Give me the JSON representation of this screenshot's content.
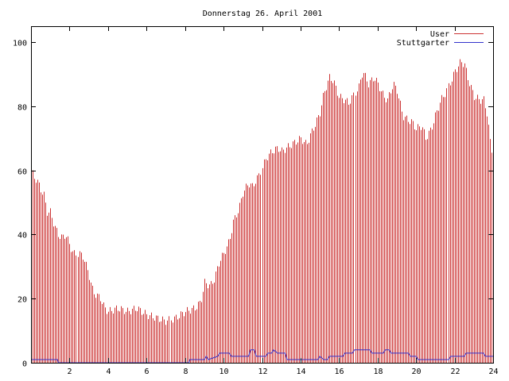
{
  "chart_data": {
    "type": "bar",
    "title": "Donnerstag 26. April 2001",
    "xlabel": "",
    "ylabel": "",
    "xlim": [
      0,
      24
    ],
    "ylim": [
      0,
      105
    ],
    "x_ticks": [
      {
        "value": 2,
        "label": "2"
      },
      {
        "value": 4,
        "label": "4"
      },
      {
        "value": 6,
        "label": "6"
      },
      {
        "value": 8,
        "label": "8"
      },
      {
        "value": 10,
        "label": "10"
      },
      {
        "value": 12,
        "label": "12"
      },
      {
        "value": 14,
        "label": "14"
      },
      {
        "value": 16,
        "label": "16"
      },
      {
        "value": 18,
        "label": "18"
      },
      {
        "value": 20,
        "label": "20"
      },
      {
        "value": 22,
        "label": "22"
      },
      {
        "value": 24,
        "label": "24"
      }
    ],
    "y_ticks": [
      {
        "value": 0,
        "label": "0"
      },
      {
        "value": 20,
        "label": "20"
      },
      {
        "value": 40,
        "label": "40"
      },
      {
        "value": 60,
        "label": "60"
      },
      {
        "value": 80,
        "label": "80"
      },
      {
        "value": 100,
        "label": "100"
      }
    ],
    "grid": false,
    "legend_position": "top-right",
    "sample_interval_minutes": 5,
    "series": [
      {
        "name": "User",
        "style": "impulses",
        "color": "#cc3333",
        "anchors": [
          [
            0.0,
            63
          ],
          [
            0.1,
            58
          ],
          [
            0.3,
            57
          ],
          [
            0.5,
            54
          ],
          [
            0.7,
            52
          ],
          [
            0.8,
            47
          ],
          [
            1.0,
            47
          ],
          [
            1.2,
            43
          ],
          [
            1.4,
            40
          ],
          [
            1.6,
            39
          ],
          [
            1.8,
            40
          ],
          [
            2.0,
            37
          ],
          [
            2.2,
            34
          ],
          [
            2.5,
            34
          ],
          [
            2.7,
            33
          ],
          [
            3.0,
            27
          ],
          [
            3.2,
            22
          ],
          [
            3.4,
            21
          ],
          [
            3.6,
            20
          ],
          [
            3.8,
            17
          ],
          [
            4.0,
            16
          ],
          [
            4.5,
            17
          ],
          [
            5.0,
            16
          ],
          [
            5.5,
            17
          ],
          [
            6.0,
            15
          ],
          [
            6.5,
            14
          ],
          [
            7.0,
            13
          ],
          [
            7.5,
            14
          ],
          [
            8.0,
            16
          ],
          [
            8.5,
            17
          ],
          [
            8.8,
            19
          ],
          [
            9.0,
            25
          ],
          [
            9.3,
            24
          ],
          [
            9.5,
            26
          ],
          [
            9.8,
            32
          ],
          [
            10.0,
            34
          ],
          [
            10.3,
            38
          ],
          [
            10.5,
            44
          ],
          [
            10.8,
            48
          ],
          [
            11.0,
            53
          ],
          [
            11.3,
            56
          ],
          [
            11.5,
            55
          ],
          [
            11.8,
            58
          ],
          [
            12.0,
            61
          ],
          [
            12.2,
            64
          ],
          [
            12.5,
            66
          ],
          [
            12.8,
            67
          ],
          [
            13.0,
            66
          ],
          [
            13.5,
            68
          ],
          [
            14.0,
            70
          ],
          [
            14.3,
            68
          ],
          [
            14.5,
            71
          ],
          [
            14.8,
            75
          ],
          [
            15.0,
            78
          ],
          [
            15.2,
            84
          ],
          [
            15.5,
            89
          ],
          [
            15.7,
            88
          ],
          [
            16.0,
            83
          ],
          [
            16.3,
            82
          ],
          [
            16.5,
            81
          ],
          [
            16.8,
            84
          ],
          [
            17.0,
            86
          ],
          [
            17.2,
            91
          ],
          [
            17.5,
            87
          ],
          [
            17.8,
            89
          ],
          [
            18.0,
            87
          ],
          [
            18.3,
            83
          ],
          [
            18.5,
            82
          ],
          [
            18.8,
            87
          ],
          [
            19.0,
            85
          ],
          [
            19.3,
            77
          ],
          [
            19.5,
            76
          ],
          [
            19.8,
            75
          ],
          [
            20.0,
            73
          ],
          [
            20.3,
            74
          ],
          [
            20.5,
            70
          ],
          [
            20.8,
            73
          ],
          [
            21.0,
            77
          ],
          [
            21.3,
            82
          ],
          [
            21.5,
            84
          ],
          [
            21.8,
            88
          ],
          [
            22.0,
            91
          ],
          [
            22.3,
            94
          ],
          [
            22.5,
            93
          ],
          [
            22.7,
            88
          ],
          [
            23.0,
            83
          ],
          [
            23.3,
            82
          ],
          [
            23.5,
            82
          ],
          [
            23.7,
            77
          ],
          [
            23.8,
            70
          ],
          [
            24.0,
            64
          ]
        ]
      },
      {
        "name": "Stuttgarter",
        "style": "lines",
        "color": "#3333cc",
        "anchors": [
          [
            0.0,
            1
          ],
          [
            1.38,
            1
          ],
          [
            1.42,
            0
          ],
          [
            8.2,
            0
          ],
          [
            8.25,
            1
          ],
          [
            9.0,
            1
          ],
          [
            9.1,
            2
          ],
          [
            9.2,
            1
          ],
          [
            9.7,
            2
          ],
          [
            9.8,
            3
          ],
          [
            10.3,
            3
          ],
          [
            10.4,
            2
          ],
          [
            11.0,
            2
          ],
          [
            11.3,
            2
          ],
          [
            11.4,
            4
          ],
          [
            11.6,
            4
          ],
          [
            11.7,
            2
          ],
          [
            12.0,
            2
          ],
          [
            12.2,
            2
          ],
          [
            12.3,
            3
          ],
          [
            12.5,
            3
          ],
          [
            12.6,
            4
          ],
          [
            12.8,
            3
          ],
          [
            13.2,
            3
          ],
          [
            13.3,
            1
          ],
          [
            14.9,
            1
          ],
          [
            15.0,
            2
          ],
          [
            15.2,
            1
          ],
          [
            15.4,
            1
          ],
          [
            15.5,
            2
          ],
          [
            16.2,
            2
          ],
          [
            16.3,
            3
          ],
          [
            16.7,
            3
          ],
          [
            16.8,
            4
          ],
          [
            17.6,
            4
          ],
          [
            17.7,
            3
          ],
          [
            18.3,
            3
          ],
          [
            18.4,
            4
          ],
          [
            18.6,
            4
          ],
          [
            18.7,
            3
          ],
          [
            19.6,
            3
          ],
          [
            19.7,
            2
          ],
          [
            20.0,
            2
          ],
          [
            20.1,
            1
          ],
          [
            21.7,
            1
          ],
          [
            21.8,
            2
          ],
          [
            22.5,
            2
          ],
          [
            22.6,
            3
          ],
          [
            23.5,
            3
          ],
          [
            23.6,
            2
          ],
          [
            24.0,
            2
          ]
        ]
      }
    ]
  }
}
